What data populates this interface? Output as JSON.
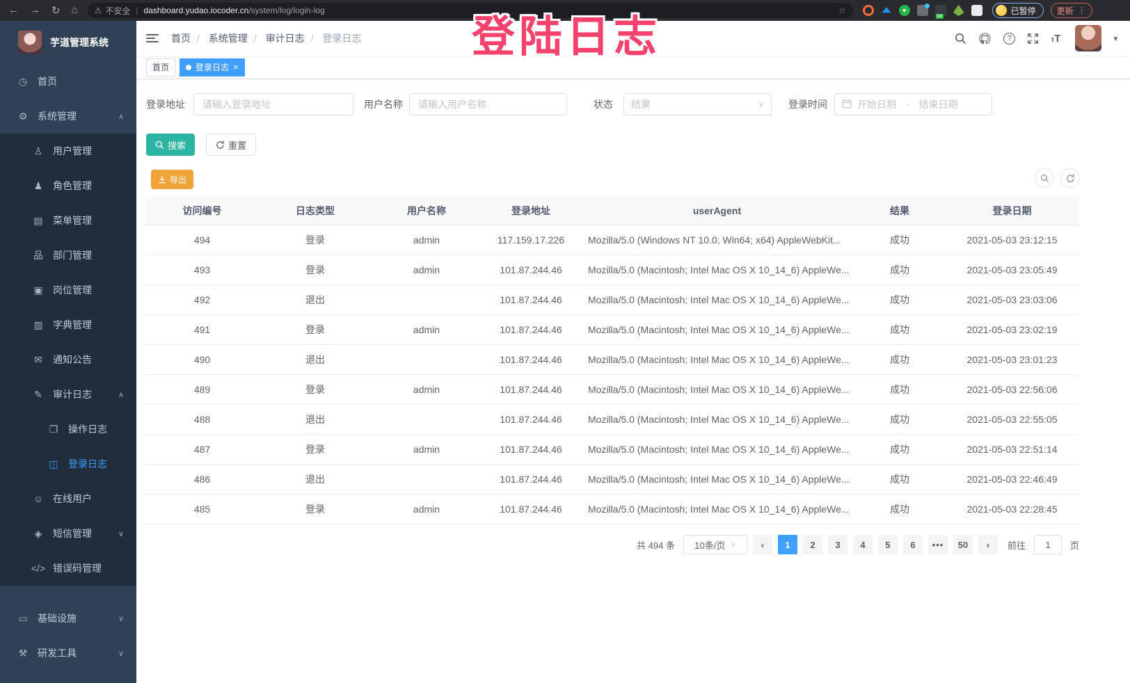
{
  "browser": {
    "security_label": "不安全",
    "url_host": "dashboard.yudao.iocoder.cn",
    "url_path": "/system/log/login-log",
    "paused_label": "已暂停",
    "update_label": "更新"
  },
  "overlay_title": "登陆日志",
  "sidebar": {
    "app_title": "芋道管理系统",
    "items": [
      {
        "id": "home",
        "label": "首页",
        "icon": "dashboard-icon",
        "glyph": "◷",
        "level": 0
      },
      {
        "id": "system",
        "label": "系统管理",
        "icon": "gear-icon",
        "glyph": "⚙",
        "level": 0,
        "chevron": "up"
      },
      {
        "id": "users",
        "label": "用户管理",
        "icon": "user-icon",
        "glyph": "♙",
        "level": 1,
        "sub": true
      },
      {
        "id": "roles",
        "label": "角色管理",
        "icon": "role-icon",
        "glyph": "♟",
        "level": 1,
        "sub": true
      },
      {
        "id": "menus",
        "label": "菜单管理",
        "icon": "menu-list-icon",
        "glyph": "▤",
        "level": 1,
        "sub": true
      },
      {
        "id": "depts",
        "label": "部门管理",
        "icon": "org-chart-icon",
        "glyph": "品",
        "level": 1,
        "sub": true
      },
      {
        "id": "posts",
        "label": "岗位管理",
        "icon": "badge-icon",
        "glyph": "▣",
        "level": 1,
        "sub": true
      },
      {
        "id": "dict",
        "label": "字典管理",
        "icon": "dictionary-icon",
        "glyph": "▥",
        "level": 1,
        "sub": true
      },
      {
        "id": "notice",
        "label": "通知公告",
        "icon": "announcement-icon",
        "glyph": "✉",
        "level": 1,
        "sub": true
      },
      {
        "id": "audit",
        "label": "审计日志",
        "icon": "audit-log-icon",
        "glyph": "✎",
        "level": 1,
        "sub": true,
        "chevron": "up"
      },
      {
        "id": "op-log",
        "label": "操作日志",
        "icon": "operation-log-icon",
        "glyph": "❐",
        "level": 2,
        "sub": true
      },
      {
        "id": "login-log",
        "label": "登录日志",
        "icon": "login-log-icon",
        "glyph": "◫",
        "level": 2,
        "sub": true,
        "active": true
      },
      {
        "id": "online",
        "label": "在线用户",
        "icon": "online-users-icon",
        "glyph": "☺",
        "level": 1,
        "sub": true
      },
      {
        "id": "sms",
        "label": "短信管理",
        "icon": "sms-shield-icon",
        "glyph": "◈",
        "level": 1,
        "sub": true,
        "chevron": "down"
      },
      {
        "id": "errcode",
        "label": "错误码管理",
        "icon": "error-code-icon",
        "glyph": "</>",
        "level": 1,
        "sub": true
      },
      {
        "id": "infra",
        "label": "基础设施",
        "icon": "infrastructure-icon",
        "glyph": "▭",
        "level": 0,
        "chevron": "down",
        "gap": true
      },
      {
        "id": "devtools",
        "label": "研发工具",
        "icon": "dev-tools-icon",
        "glyph": "⚒",
        "level": 0,
        "chevron": "down"
      }
    ]
  },
  "breadcrumb": [
    "首页",
    "系统管理",
    "审计日志",
    "登录日志"
  ],
  "tabs": [
    {
      "label": "首页",
      "active": false
    },
    {
      "label": "登录日志",
      "active": true
    }
  ],
  "filters": {
    "login_address_label": "登录地址",
    "login_address_placeholder": "请输入登录地址",
    "username_label": "用户名称",
    "username_placeholder": "请输入用户名称",
    "status_label": "状态",
    "status_placeholder": "结果",
    "login_time_label": "登录时间",
    "start_date_placeholder": "开始日期",
    "range_separator": "-",
    "end_date_placeholder": "结束日期"
  },
  "actions": {
    "search_label": "搜索",
    "reset_label": "重置",
    "export_label": "导出"
  },
  "table": {
    "headers": [
      "访问编号",
      "日志类型",
      "用户名称",
      "登录地址",
      "userAgent",
      "结果",
      "登录日期"
    ],
    "rows": [
      [
        "494",
        "登录",
        "admin",
        "117.159.17.226",
        "Mozilla/5.0 (Windows NT 10.0; Win64; x64) AppleWebKit...",
        "成功",
        "2021-05-03 23:12:15"
      ],
      [
        "493",
        "登录",
        "admin",
        "101.87.244.46",
        "Mozilla/5.0 (Macintosh; Intel Mac OS X 10_14_6) AppleWe...",
        "成功",
        "2021-05-03 23:05:49"
      ],
      [
        "492",
        "退出",
        "",
        "101.87.244.46",
        "Mozilla/5.0 (Macintosh; Intel Mac OS X 10_14_6) AppleWe...",
        "成功",
        "2021-05-03 23:03:06"
      ],
      [
        "491",
        "登录",
        "admin",
        "101.87.244.46",
        "Mozilla/5.0 (Macintosh; Intel Mac OS X 10_14_6) AppleWe...",
        "成功",
        "2021-05-03 23:02:19"
      ],
      [
        "490",
        "退出",
        "",
        "101.87.244.46",
        "Mozilla/5.0 (Macintosh; Intel Mac OS X 10_14_6) AppleWe...",
        "成功",
        "2021-05-03 23:01:23"
      ],
      [
        "489",
        "登录",
        "admin",
        "101.87.244.46",
        "Mozilla/5.0 (Macintosh; Intel Mac OS X 10_14_6) AppleWe...",
        "成功",
        "2021-05-03 22:56:06"
      ],
      [
        "488",
        "退出",
        "",
        "101.87.244.46",
        "Mozilla/5.0 (Macintosh; Intel Mac OS X 10_14_6) AppleWe...",
        "成功",
        "2021-05-03 22:55:05"
      ],
      [
        "487",
        "登录",
        "admin",
        "101.87.244.46",
        "Mozilla/5.0 (Macintosh; Intel Mac OS X 10_14_6) AppleWe...",
        "成功",
        "2021-05-03 22:51:14"
      ],
      [
        "486",
        "退出",
        "",
        "101.87.244.46",
        "Mozilla/5.0 (Macintosh; Intel Mac OS X 10_14_6) AppleWe...",
        "成功",
        "2021-05-03 22:46:49"
      ],
      [
        "485",
        "登录",
        "admin",
        "101.87.244.46",
        "Mozilla/5.0 (Macintosh; Intel Mac OS X 10_14_6) AppleWe...",
        "成功",
        "2021-05-03 22:28:45"
      ]
    ]
  },
  "pagination": {
    "total": "共 494 条",
    "page_size": "10条/页",
    "pages": [
      "1",
      "2",
      "3",
      "4",
      "5",
      "6",
      "•••",
      "50"
    ],
    "active_page": "1",
    "prev": "‹",
    "next": "›",
    "goto_label": "前往",
    "goto_value": "1",
    "unit_label": "页"
  },
  "colors": {
    "accent": "#409eff",
    "search_teal": "#2db5a3",
    "export_orange": "#f0a338",
    "overlay_pink": "#f4426e",
    "sidebar_bg": "#304156",
    "sidebar_sub_bg": "#1f2d3d"
  }
}
